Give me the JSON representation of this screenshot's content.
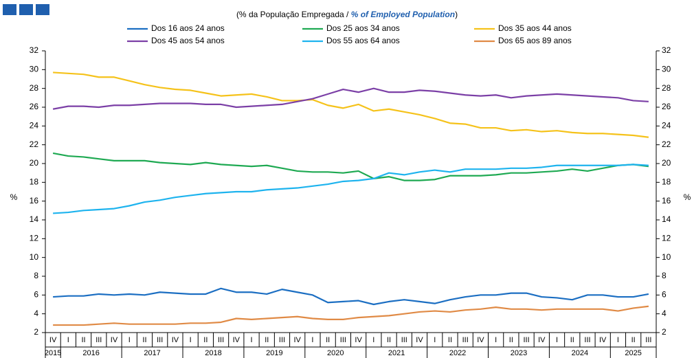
{
  "chart_data": {
    "type": "line",
    "subtitle": [
      "(% da População Empregada / ",
      "% of Employed Population",
      ")"
    ],
    "y_label": "%",
    "categories": [
      "IV",
      "I",
      "II",
      "III",
      "IV",
      "I",
      "II",
      "III",
      "IV",
      "I",
      "II",
      "III",
      "IV",
      "I",
      "II",
      "III",
      "IV",
      "I",
      "II",
      "III",
      "IV",
      "I",
      "II",
      "III",
      "IV",
      "I",
      "II",
      "III",
      "IV",
      "I",
      "II",
      "III",
      "IV",
      "I",
      "II",
      "III",
      "IV",
      "I",
      "II",
      "III"
    ],
    "years": [
      "2015",
      "2016",
      "2017",
      "2018",
      "2019",
      "2020",
      "2021",
      "2022",
      "2023",
      "2024",
      "2025"
    ],
    "ylim": [
      2,
      32
    ],
    "yticks": [
      2,
      4,
      6,
      8,
      10,
      12,
      14,
      16,
      18,
      20,
      22,
      24,
      26,
      28,
      30,
      32
    ],
    "series": [
      {
        "name": "Dos 16 aos 24 anos",
        "color": "#1b6ec2",
        "values": [
          5.8,
          5.9,
          5.9,
          6.1,
          6.0,
          6.1,
          6.0,
          6.3,
          6.2,
          6.1,
          6.1,
          6.7,
          6.3,
          6.3,
          6.1,
          6.6,
          6.3,
          6.0,
          5.2,
          5.3,
          5.4,
          5.0,
          5.3,
          5.5,
          5.3,
          5.1,
          5.5,
          5.8,
          6.0,
          6.0,
          6.2,
          6.2,
          5.8,
          5.7,
          5.5,
          6.0,
          6.0,
          5.8,
          5.8,
          6.1
        ]
      },
      {
        "name": "Dos 25 aos 34 anos",
        "color": "#1ea952",
        "values": [
          21.1,
          20.8,
          20.7,
          20.5,
          20.3,
          20.3,
          20.3,
          20.1,
          20.0,
          19.9,
          20.1,
          19.9,
          19.8,
          19.7,
          19.8,
          19.5,
          19.2,
          19.1,
          19.1,
          19.0,
          19.2,
          18.4,
          18.6,
          18.2,
          18.2,
          18.3,
          18.7,
          18.7,
          18.7,
          18.8,
          19.0,
          19.0,
          19.1,
          19.2,
          19.4,
          19.2,
          19.5,
          19.8,
          19.9,
          19.7
        ]
      },
      {
        "name": "Dos 35 aos 44 anos",
        "color": "#f5c21a",
        "values": [
          29.7,
          29.6,
          29.5,
          29.2,
          29.2,
          28.8,
          28.4,
          28.1,
          27.9,
          27.8,
          27.5,
          27.2,
          27.3,
          27.4,
          27.1,
          26.7,
          26.7,
          26.8,
          26.2,
          25.9,
          26.3,
          25.6,
          25.8,
          25.5,
          25.2,
          24.8,
          24.3,
          24.2,
          23.8,
          23.8,
          23.5,
          23.6,
          23.4,
          23.5,
          23.3,
          23.2,
          23.2,
          23.1,
          23.0,
          22.8
        ]
      },
      {
        "name": "Dos 45 aos 54 anos",
        "color": "#7b3fa6",
        "values": [
          25.8,
          26.1,
          26.1,
          26.0,
          26.2,
          26.2,
          26.3,
          26.4,
          26.4,
          26.4,
          26.3,
          26.3,
          26.0,
          26.1,
          26.2,
          26.3,
          26.6,
          26.9,
          27.4,
          27.9,
          27.6,
          28.0,
          27.6,
          27.6,
          27.8,
          27.7,
          27.5,
          27.3,
          27.2,
          27.3,
          27.0,
          27.2,
          27.3,
          27.4,
          27.3,
          27.2,
          27.1,
          27.0,
          26.7,
          26.6
        ]
      },
      {
        "name": "Dos 55 aos 64 anos",
        "color": "#1db3ee",
        "values": [
          14.7,
          14.8,
          15.0,
          15.1,
          15.2,
          15.5,
          15.9,
          16.1,
          16.4,
          16.6,
          16.8,
          16.9,
          17.0,
          17.0,
          17.2,
          17.3,
          17.4,
          17.6,
          17.8,
          18.1,
          18.2,
          18.4,
          19.0,
          18.8,
          19.1,
          19.3,
          19.1,
          19.4,
          19.4,
          19.4,
          19.5,
          19.5,
          19.6,
          19.8,
          19.8,
          19.8,
          19.8,
          19.8,
          19.9,
          19.8
        ]
      },
      {
        "name": "Dos 65 aos 89 anos",
        "color": "#e08a45",
        "values": [
          2.8,
          2.8,
          2.8,
          2.9,
          3.0,
          2.9,
          2.9,
          2.9,
          2.9,
          3.0,
          3.0,
          3.1,
          3.5,
          3.4,
          3.5,
          3.6,
          3.7,
          3.5,
          3.4,
          3.4,
          3.6,
          3.7,
          3.8,
          4.0,
          4.2,
          4.3,
          4.2,
          4.4,
          4.5,
          4.7,
          4.5,
          4.5,
          4.4,
          4.5,
          4.5,
          4.5,
          4.5,
          4.3,
          4.6,
          4.8
        ]
      }
    ]
  }
}
